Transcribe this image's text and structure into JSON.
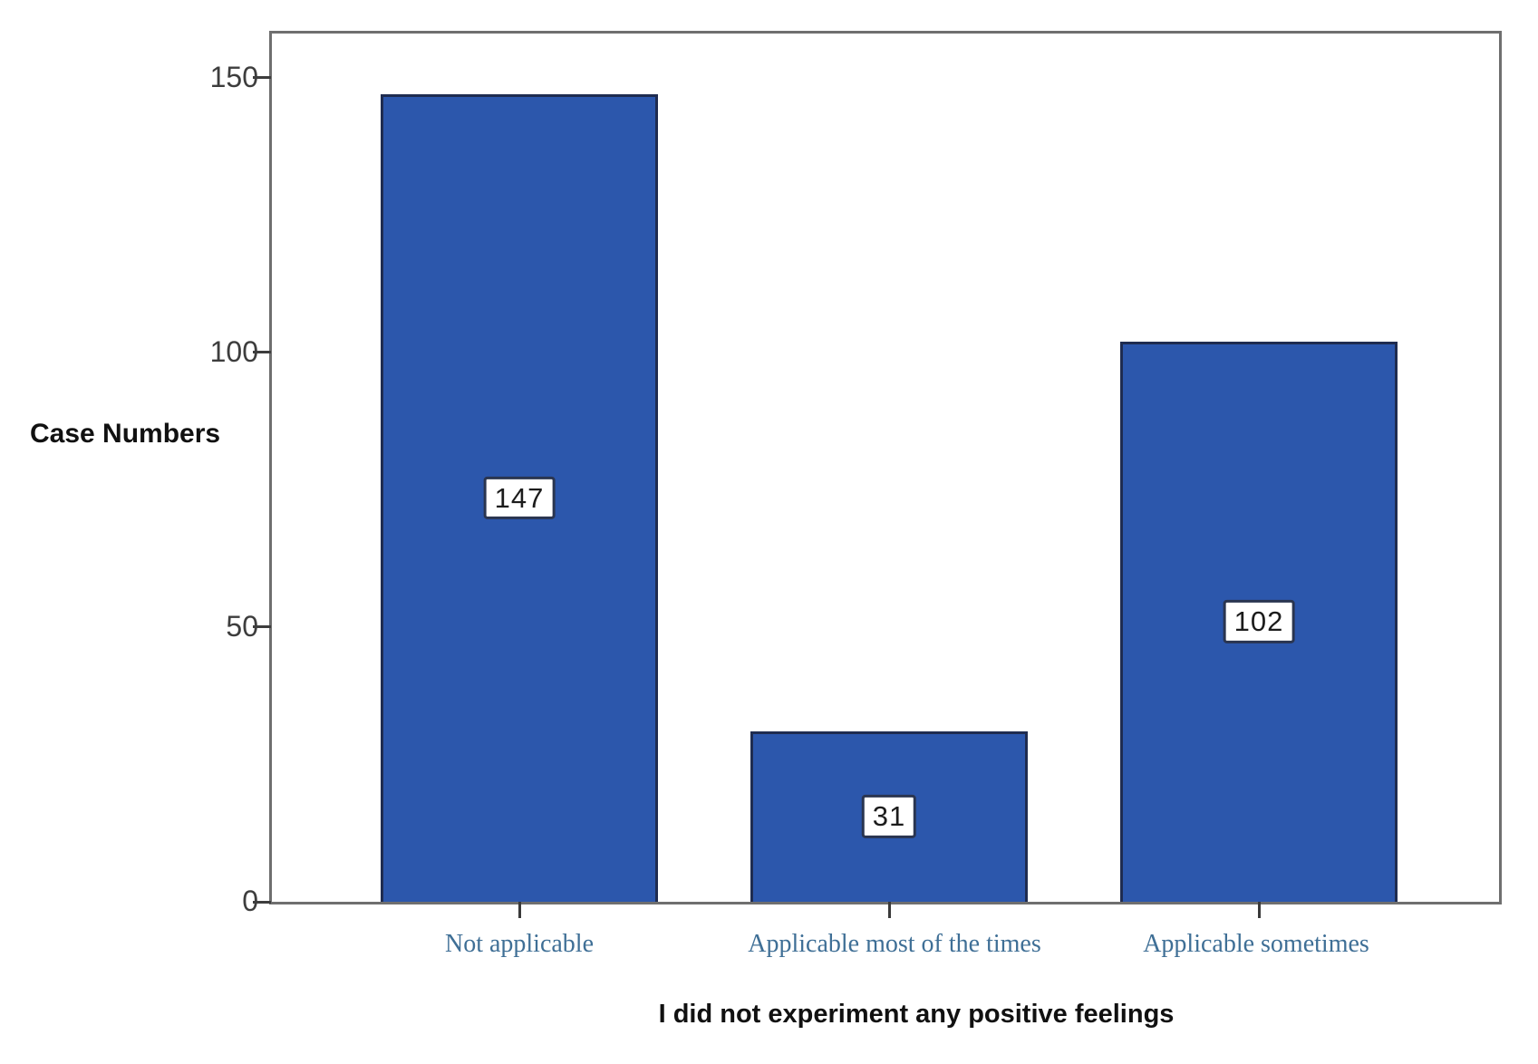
{
  "chart_data": {
    "type": "bar",
    "title": "",
    "xlabel": "I did not experiment any positive feelings",
    "ylabel": "Case Numbers",
    "categories": [
      "Not applicable",
      "Applicable most of the times",
      "Applicable sometimes"
    ],
    "values": [
      147,
      31,
      102
    ],
    "yticks": [
      0,
      50,
      100,
      150
    ],
    "ylim": [
      0,
      158
    ],
    "grid": false,
    "legend": "none",
    "bar_color": "#2c57ac",
    "bar_border_color": "#1f2c50",
    "value_badge_bg": "#ffffff",
    "value_badge_border": "#2a3550",
    "category_label_color": "#3f6f96",
    "axis_tick_color": "#3d3d3d",
    "frame_color": "#6f6f6f"
  }
}
